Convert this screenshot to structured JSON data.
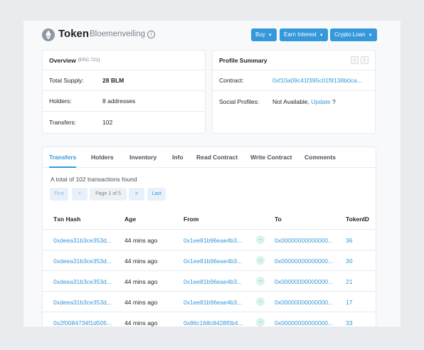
{
  "header": {
    "title": "Token",
    "subtitle": "Bloemenveiling",
    "info_glyph": "i",
    "buttons": [
      {
        "label": "Buy"
      },
      {
        "label": "Earn Interest"
      },
      {
        "label": "Crypto Loan"
      }
    ]
  },
  "overview": {
    "title": "Overview",
    "standard": "[ERC-721]",
    "rows": [
      {
        "label": "Total Supply:",
        "value": "28 BLM"
      },
      {
        "label": "Holders:",
        "value": "8 addresses"
      },
      {
        "label": "Transfers:",
        "value": "102"
      }
    ]
  },
  "profile": {
    "title": "Profile Summary",
    "contract_label": "Contract:",
    "contract_value": "0xf10a09c41f395c01f9138b0ca...",
    "social_label": "Social Profiles:",
    "social_value": "Not Available,",
    "social_link": "Update",
    "social_suffix": "?"
  },
  "tabs": [
    "Transfers",
    "Holders",
    "Inventory",
    "Info",
    "Read Contract",
    "Write Contract",
    "Comments"
  ],
  "transfers": {
    "summary": "A total of 102 transactions found",
    "pager": {
      "first": "First",
      "prev": "<",
      "page": "Page 1 of 5",
      "next": ">",
      "last": "Last"
    },
    "columns": [
      "Txn Hash",
      "Age",
      "From",
      "To",
      "TokenID"
    ],
    "rows": [
      {
        "hash": "0xdeea31b3ce353d...",
        "age": "44 mins ago",
        "from": "0x1ee81b96eae4b3...",
        "to": "0x00000000000000...",
        "token": "36"
      },
      {
        "hash": "0xdeea31b3ce353d...",
        "age": "44 mins ago",
        "from": "0x1ee81b96eae4b3...",
        "to": "0x00000000000000...",
        "token": "30"
      },
      {
        "hash": "0xdeea31b3ce353d...",
        "age": "44 mins ago",
        "from": "0x1ee81b96eae4b3...",
        "to": "0x00000000000000...",
        "token": "21"
      },
      {
        "hash": "0xdeea31b3ce353d...",
        "age": "44 mins ago",
        "from": "0x1ee81b96eae4b3...",
        "to": "0x00000000000000...",
        "token": "17"
      },
      {
        "hash": "0x2f0084734f1d505...",
        "age": "44 mins ago",
        "from": "0x86c168c8428f0b4...",
        "to": "0x00000000000000...",
        "token": "33"
      }
    ]
  },
  "colors": {
    "accent": "#3498db",
    "success": "#00c9a7",
    "text": "#1e2022",
    "muted": "#77838f"
  }
}
